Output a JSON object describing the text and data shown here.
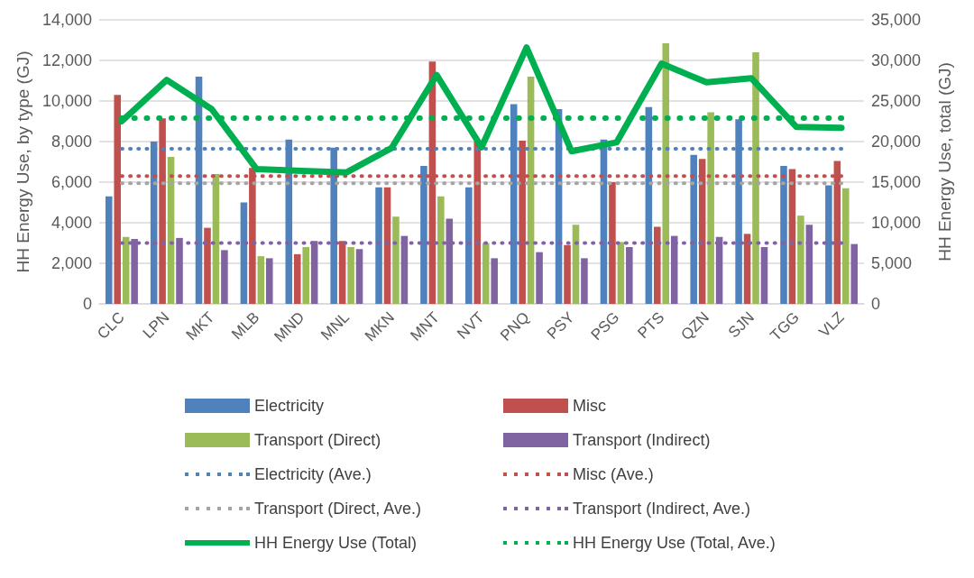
{
  "chart_data": {
    "type": "bar",
    "ylabel": "HH Energy Use, by type (GJ)",
    "y2label": "HH Energy Use, total (GJ)",
    "categories": [
      "CLC",
      "LPN",
      "MKT",
      "MLB",
      "MND",
      "MNL",
      "MKN",
      "MNT",
      "NVT",
      "PNQ",
      "PSY",
      "PSG",
      "PTS",
      "QZN",
      "SJN",
      "TGG",
      "VLZ"
    ],
    "series": [
      {
        "name": "Electricity",
        "type": "bar",
        "color": "#4f81bd",
        "values": [
          5300,
          8000,
          11200,
          5000,
          8100,
          7700,
          5750,
          6800,
          5750,
          9850,
          9600,
          8100,
          9700,
          7350,
          9100,
          6800,
          5850
        ]
      },
      {
        "name": "Misc",
        "type": "bar",
        "color": "#c0504d",
        "values": [
          10300,
          9150,
          3750,
          6700,
          2450,
          3100,
          5750,
          11950,
          8000,
          8050,
          2900,
          6000,
          3800,
          7150,
          3450,
          6650,
          7050
        ]
      },
      {
        "name": "Transport (Direct)",
        "type": "bar",
        "color": "#9bbb59",
        "values": [
          3300,
          7250,
          6400,
          2350,
          2800,
          2800,
          4300,
          5300,
          3000,
          11200,
          3900,
          3050,
          12850,
          9450,
          12400,
          4350,
          5700
        ]
      },
      {
        "name": "Transport (Indirect)",
        "type": "bar",
        "color": "#8064a2",
        "values": [
          3200,
          3250,
          2650,
          2250,
          3100,
          2700,
          3350,
          4200,
          2250,
          2550,
          2250,
          2800,
          3350,
          3300,
          2800,
          3900,
          2950
        ]
      },
      {
        "name": "Electricity (Ave.)",
        "type": "line",
        "line_style": "dotted",
        "marker": "none",
        "color": "#4f81bd",
        "values": [
          7650,
          7650,
          7650,
          7650,
          7650,
          7650,
          7650,
          7650,
          7650,
          7650,
          7650,
          7650,
          7650,
          7650,
          7650,
          7650,
          7650
        ]
      },
      {
        "name": "Misc (Ave.)",
        "type": "line",
        "line_style": "dotted",
        "marker": "none",
        "color": "#c0504d",
        "values": [
          6300,
          6300,
          6300,
          6300,
          6300,
          6300,
          6300,
          6300,
          6300,
          6300,
          6300,
          6300,
          6300,
          6300,
          6300,
          6300,
          6300
        ]
      },
      {
        "name": "Transport (Direct, Ave.)",
        "type": "line",
        "line_style": "dotted",
        "marker": "none",
        "color": "#a5a5a5",
        "values": [
          5950,
          5950,
          5950,
          5950,
          5950,
          5950,
          5950,
          5950,
          5950,
          5950,
          5950,
          5950,
          5950,
          5950,
          5950,
          5950,
          5950
        ]
      },
      {
        "name": "Transport (Indirect, Ave.)",
        "type": "line",
        "line_style": "dotted",
        "marker": "none",
        "color": "#8064a2",
        "values": [
          3000,
          3000,
          3000,
          3000,
          3000,
          3000,
          3000,
          3000,
          3000,
          3000,
          3000,
          3000,
          3000,
          3000,
          3000,
          3000,
          3000
        ]
      },
      {
        "name": "HH Energy Use (Total)",
        "type": "line",
        "line_style": "solid",
        "marker": "none",
        "axis": "y2",
        "color": "#00b050",
        "values": [
          22500,
          27600,
          24000,
          16600,
          16400,
          16200,
          19200,
          28200,
          19300,
          31600,
          18800,
          19900,
          29600,
          27300,
          27800,
          21800,
          21700
        ]
      },
      {
        "name": "HH Energy Use (Total, Ave.)",
        "type": "line",
        "line_style": "dotted",
        "marker": "none",
        "axis": "y2",
        "color": "#00b050",
        "values": [
          22900,
          22900,
          22900,
          22900,
          22900,
          22900,
          22900,
          22900,
          22900,
          22900,
          22900,
          22900,
          22900,
          22900,
          22900,
          22900,
          22900
        ]
      }
    ],
    "ylim": [
      0,
      14000
    ],
    "yticks": [
      0,
      {
        "value": 2000,
        "label": "2,000"
      },
      {
        "value": 4000,
        "label": "4,000"
      },
      {
        "value": 6000,
        "label": "6,000"
      },
      {
        "value": 8000,
        "label": "8,000"
      },
      {
        "value": 10000,
        "label": "10,000"
      },
      {
        "value": 12000,
        "label": "12,000"
      },
      {
        "value": 14000,
        "label": "14,000"
      }
    ],
    "y2lim": [
      0,
      35000
    ],
    "y2ticks": [
      0,
      {
        "value": 5000,
        "label": "5,000"
      },
      {
        "value": 10000,
        "label": "10,000"
      },
      {
        "value": 15000,
        "label": "15,000"
      },
      {
        "value": 20000,
        "label": "20,000"
      },
      {
        "value": 25000,
        "label": "25,000"
      },
      {
        "value": 30000,
        "label": "30,000"
      },
      {
        "value": 35000,
        "label": "35,000"
      }
    ],
    "grid": "y",
    "legend": "bottom"
  }
}
